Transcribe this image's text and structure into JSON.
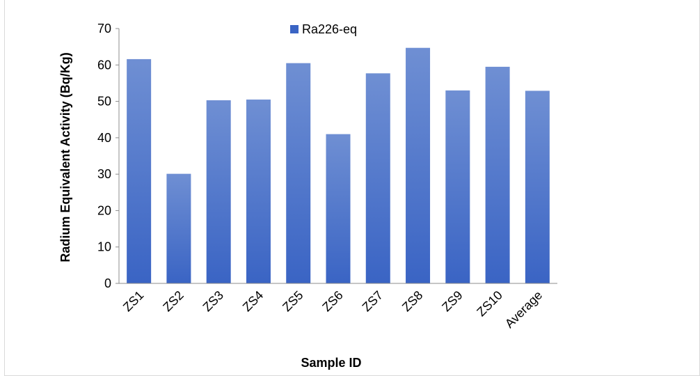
{
  "chart_data": {
    "type": "bar",
    "categories": [
      "ZS1",
      "ZS2",
      "ZS3",
      "ZS4",
      "ZS5",
      "ZS6",
      "ZS7",
      "ZS8",
      "ZS9",
      "ZS10",
      "Average"
    ],
    "series": [
      {
        "name": "Ra226-eq",
        "values": [
          61.6,
          30.1,
          50.3,
          50.5,
          60.5,
          41.0,
          57.7,
          64.7,
          53.0,
          59.5,
          52.9
        ]
      }
    ],
    "title": "",
    "xlabel": "Sample ID",
    "ylabel": "Radium Equivalent Activity (Bq/Kg)",
    "ylim": [
      0,
      70
    ],
    "yticks": [
      0,
      10,
      20,
      30,
      40,
      50,
      60,
      70
    ],
    "grid": false,
    "legend_position": "top-center",
    "colors": {
      "bar_light": "#6f8fd3",
      "bar_dark": "#3a64c4",
      "axis": "#8c8c8c"
    }
  }
}
